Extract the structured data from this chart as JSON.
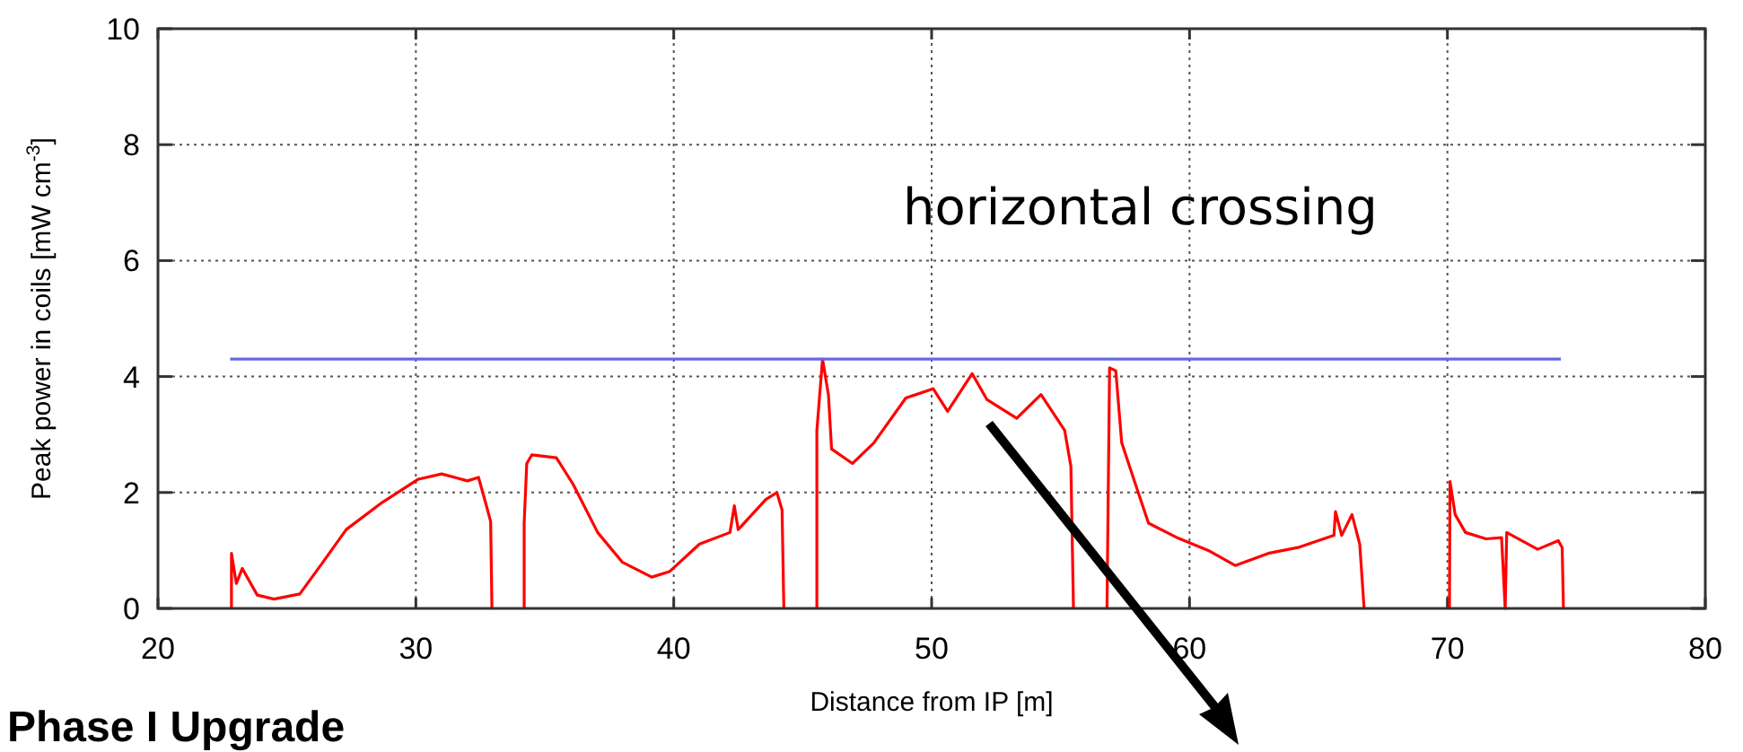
{
  "chart_data": {
    "type": "line",
    "xlabel": "Distance from IP [m]",
    "ylabel": "Peak power in coils [mW cm$^{-3}$]",
    "annotations": [
      "horizontal crossing",
      "Phase I Upgrade"
    ],
    "xlim": [
      20,
      80
    ],
    "xticks": [
      20,
      30,
      40,
      50,
      60,
      70,
      80
    ],
    "ylim": [
      0,
      10
    ],
    "yticks": [
      0,
      2,
      4,
      6,
      8,
      10
    ],
    "grid": true,
    "marker": "none",
    "line_style": "solid",
    "series": [
      {
        "color": "#ff0000",
        "x": [
          22.85,
          22.85,
          23.04,
          23.27,
          23.85,
          24.5,
          25.5,
          26.4,
          27.3,
          28.7,
          30.1,
          31.0,
          32.0,
          32.43,
          32.7,
          32.9,
          32.95
        ],
        "values": [
          0,
          0.95,
          0.43,
          0.69,
          0.23,
          0.16,
          0.25,
          0.8,
          1.36,
          1.83,
          2.23,
          2.32,
          2.2,
          2.26,
          1.83,
          1.5,
          0
        ]
      },
      {
        "color": "#ff0000",
        "x": [
          34.2,
          34.2,
          34.3,
          34.5,
          35.45,
          36.1,
          37.05,
          38.0,
          39.15,
          39.85,
          41.0,
          42.18,
          42.35,
          42.5,
          43.57,
          44.0,
          44.2,
          44.27
        ],
        "values": [
          0,
          1.47,
          2.5,
          2.65,
          2.6,
          2.14,
          1.31,
          0.8,
          0.54,
          0.64,
          1.11,
          1.31,
          1.77,
          1.36,
          1.88,
          2.0,
          1.7,
          0
        ]
      },
      {
        "color": "#ff0000",
        "x": [
          45.55,
          45.55,
          45.77,
          46.0,
          46.12,
          46.93,
          47.75,
          49.0,
          50.06,
          50.62,
          51.57,
          52.15,
          53.3,
          54.24,
          55.16,
          55.4,
          55.5
        ],
        "values": [
          0,
          3.07,
          4.3,
          3.68,
          2.75,
          2.5,
          2.85,
          3.63,
          3.79,
          3.4,
          4.05,
          3.6,
          3.28,
          3.69,
          3.07,
          2.45,
          0
        ]
      },
      {
        "color": "#ff0000",
        "x": [
          56.8,
          56.9,
          57.14,
          57.37,
          57.83,
          58.41,
          59.57,
          60.73,
          61.77,
          63.05,
          64.2,
          65.6,
          65.66,
          65.9,
          66.3,
          66.6,
          66.77
        ],
        "values": [
          0,
          4.15,
          4.1,
          2.86,
          2.24,
          1.47,
          1.21,
          1.0,
          0.74,
          0.95,
          1.05,
          1.26,
          1.67,
          1.26,
          1.62,
          1.11,
          0
        ]
      },
      {
        "color": "#ff0000",
        "x": [
          70.08,
          70.1,
          70.3,
          70.7,
          71.5,
          72.1,
          72.24,
          72.3,
          73.5,
          74.3,
          74.45,
          74.5
        ],
        "values": [
          0,
          2.19,
          1.62,
          1.31,
          1.2,
          1.22,
          0,
          1.31,
          1.02,
          1.17,
          1.05,
          0
        ]
      },
      {
        "color": "#6666ee",
        "x": [
          22.8,
          74.4
        ],
        "values": [
          4.3,
          4.3
        ]
      }
    ]
  }
}
